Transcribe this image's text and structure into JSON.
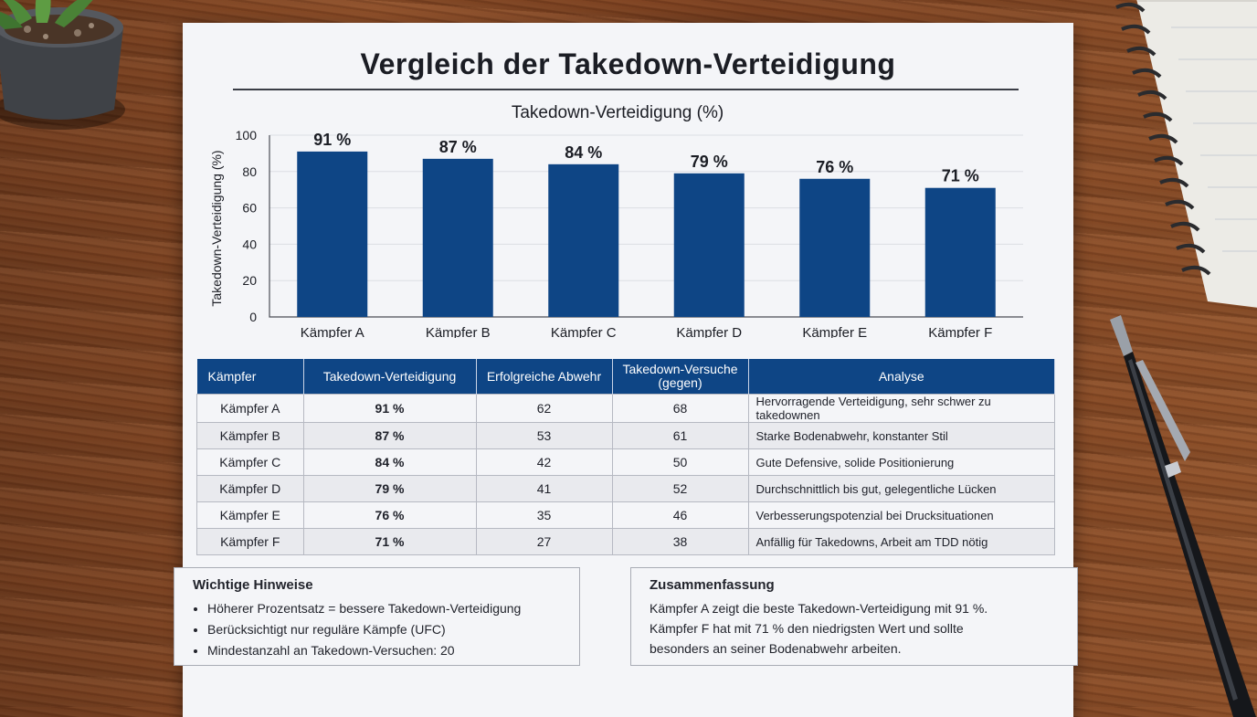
{
  "page": {
    "title": "Vergleich der Takedown-Verteidigung"
  },
  "chart_data": {
    "type": "bar",
    "title": "Takedown-Verteidigung (%)",
    "ylabel": "Takedown-Verteidigung (%)",
    "xlabel": "",
    "categories": [
      "Kämpfer A",
      "Kämpfer B",
      "Kämpfer C",
      "Kämpfer D",
      "Kämpfer E",
      "Kämpfer F"
    ],
    "values": [
      91,
      87,
      84,
      79,
      76,
      71
    ],
    "value_labels": [
      "91 %",
      "87 %",
      "84 %",
      "79 %",
      "76 %",
      "71 %"
    ],
    "ylim": [
      0,
      100
    ],
    "yticks": [
      0,
      20,
      40,
      60,
      80,
      100
    ],
    "grid": true,
    "bar_color": "#0e4585"
  },
  "table": {
    "headers": [
      "Kämpfer",
      "Takedown-Verteidigung",
      "Erfolgreiche Abwehr",
      "Takedown-Versuche (gegen)",
      "Analyse"
    ],
    "rows": [
      [
        "Kämpfer A",
        "91 %",
        "62",
        "68",
        "Hervorragende Verteidigung, sehr schwer zu takedownen"
      ],
      [
        "Kämpfer B",
        "87 %",
        "53",
        "61",
        "Starke Bodenabwehr, konstanter Stil"
      ],
      [
        "Kämpfer C",
        "84 %",
        "42",
        "50",
        "Gute Defensive, solide Positionierung"
      ],
      [
        "Kämpfer D",
        "79 %",
        "41",
        "52",
        "Durchschnittlich bis gut, gelegentliche Lücken"
      ],
      [
        "Kämpfer E",
        "76 %",
        "35",
        "46",
        "Verbesserungspotenzial bei Drucksituationen"
      ],
      [
        "Kämpfer F",
        "71 %",
        "27",
        "38",
        "Anfällig für Takedowns, Arbeit am TDD nötig"
      ]
    ]
  },
  "notes": {
    "title": "Wichtige Hinweise",
    "items": [
      "Höherer Prozentsatz = bessere Takedown-Verteidigung",
      "Berücksichtigt nur reguläre Kämpfe (UFC)",
      "Mindestanzahl an Takedown-Versuchen: 20"
    ]
  },
  "summary": {
    "title": "Zusammenfassung",
    "lines": [
      "Kämpfer A zeigt die beste Takedown-Verteidigung mit 91 %.",
      "Kämpfer F hat mit 71 % den niedrigsten Wert und sollte",
      "besonders an seiner Bodenabwehr arbeiten."
    ]
  },
  "decor": {
    "plant_icon": "potted-plant-icon",
    "notebook_icon": "spiral-notebook-icon",
    "pen_icon": "ballpoint-pen-icon"
  }
}
